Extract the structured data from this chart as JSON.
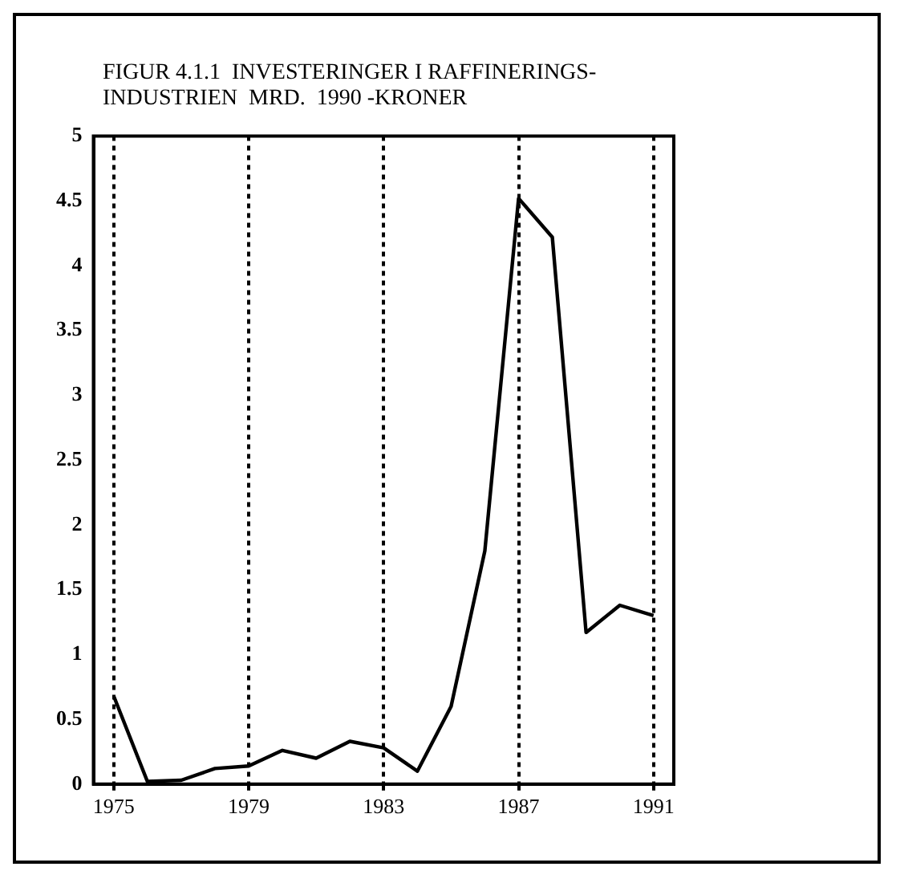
{
  "chart_data": {
    "type": "line",
    "title": "FIGUR 4.1.1  INVESTERINGER I RAFFINERINGS-\nINDUSTRIEN  MRD.  1990 -KRONER",
    "x": [
      1975,
      1976,
      1977,
      1978,
      1979,
      1980,
      1981,
      1982,
      1983,
      1984,
      1985,
      1986,
      1987,
      1988,
      1989,
      1990,
      1991
    ],
    "series": [
      {
        "color": "#000000",
        "values": [
          0.68,
          0.02,
          0.03,
          0.12,
          0.14,
          0.26,
          0.2,
          0.33,
          0.28,
          0.1,
          0.6,
          1.8,
          4.52,
          4.22,
          1.17,
          1.38,
          1.3
        ]
      }
    ],
    "xlim": [
      1974.4,
      1991.6
    ],
    "xticks": [
      1975,
      1979,
      1983,
      1987,
      1991
    ],
    "ylim": [
      0,
      5
    ],
    "yticks": [
      0,
      0.5,
      1,
      1.5,
      2,
      2.5,
      3,
      3.5,
      4,
      4.5,
      5
    ],
    "grid": "x",
    "legend": false,
    "marker": "none",
    "line_style": "solid"
  }
}
